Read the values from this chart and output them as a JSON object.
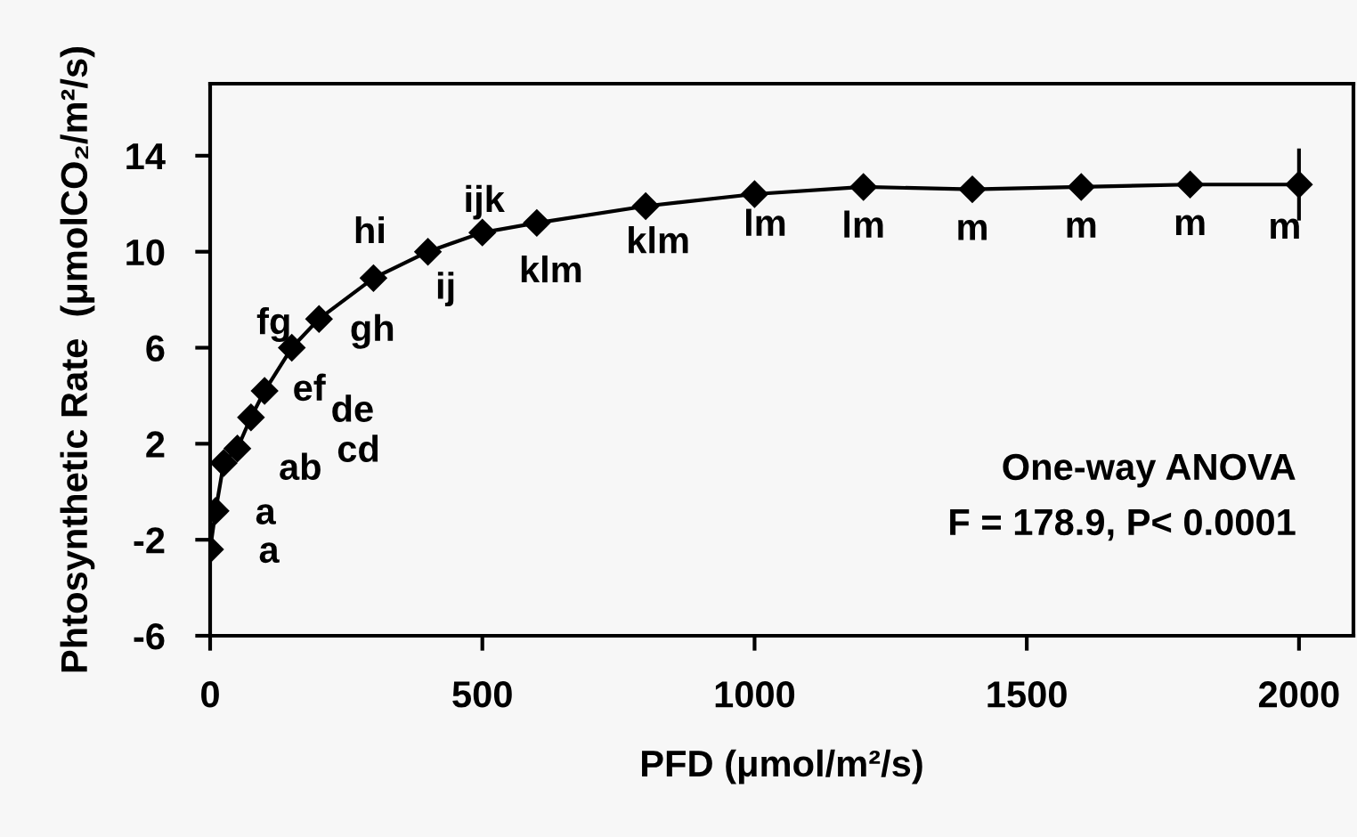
{
  "chart_data": {
    "type": "line",
    "xlabel": "PFD (μmol/m²/s)",
    "ylabel": "Phtosynthetic Rate  (μmolCO₂/m²/s)",
    "x": [
      0,
      10,
      25,
      50,
      75,
      100,
      150,
      200,
      300,
      400,
      500,
      600,
      800,
      1000,
      1200,
      1400,
      1600,
      1800,
      2000
    ],
    "series": [
      {
        "color": "#000000",
        "values": [
          -2.4,
          -0.8,
          1.2,
          1.8,
          3.1,
          4.2,
          6.0,
          7.2,
          8.9,
          10.0,
          10.8,
          11.2,
          11.9,
          12.4,
          12.7,
          12.6,
          12.7,
          12.8,
          12.8
        ],
        "errors": [
          null,
          null,
          null,
          null,
          null,
          null,
          null,
          null,
          null,
          null,
          null,
          null,
          null,
          null,
          null,
          null,
          null,
          null,
          1.5
        ]
      }
    ],
    "xlim": [
      0,
      2100
    ],
    "xticks": [
      0,
      500,
      1000,
      1500,
      2000
    ],
    "ylim": [
      -6,
      17
    ],
    "yticks": [
      -6,
      -2,
      2,
      6,
      10,
      14
    ],
    "marker": "diamond",
    "line_style": "solid",
    "grid": false,
    "legend": false,
    "annotations": [
      {
        "text": "a",
        "x": 0,
        "y": -2.4
      },
      {
        "text": "a",
        "x": 10,
        "y": -0.8
      },
      {
        "text": "ab",
        "x": 25,
        "y": 1.2
      },
      {
        "text": "cd",
        "x": 50,
        "y": 1.8
      },
      {
        "text": "de",
        "x": 75,
        "y": 3.1
      },
      {
        "text": "ef",
        "x": 100,
        "y": 4.2
      },
      {
        "text": "fg",
        "x": 150,
        "y": 6.0
      },
      {
        "text": "gh",
        "x": 200,
        "y": 7.2
      },
      {
        "text": "hi",
        "x": 300,
        "y": 8.9
      },
      {
        "text": "ij",
        "x": 400,
        "y": 10.0
      },
      {
        "text": "ijk",
        "x": 500,
        "y": 10.8
      },
      {
        "text": "klm",
        "x": 600,
        "y": 11.2
      },
      {
        "text": "klm",
        "x": 800,
        "y": 11.9
      },
      {
        "text": "lm",
        "x": 1000,
        "y": 12.4
      },
      {
        "text": "lm",
        "x": 1200,
        "y": 12.7
      },
      {
        "text": "m",
        "x": 1400,
        "y": 12.6
      },
      {
        "text": "m",
        "x": 1600,
        "y": 12.7
      },
      {
        "text": "m",
        "x": 1800,
        "y": 12.8
      },
      {
        "text": "m",
        "x": 2000,
        "y": 12.8
      },
      "One-way ANOVA",
      "F = 178.9, P< 0.0001"
    ]
  }
}
